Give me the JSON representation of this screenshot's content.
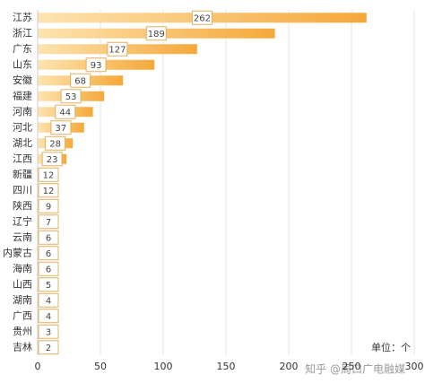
{
  "chart_data": {
    "type": "bar",
    "orientation": "horizontal",
    "categories": [
      "江苏",
      "浙江",
      "广东",
      "山东",
      "安徽",
      "福建",
      "河南",
      "河北",
      "湖北",
      "江西",
      "新疆",
      "四川",
      "陕西",
      "辽宁",
      "云南",
      "内蒙古",
      "海南",
      "山西",
      "湖南",
      "广西",
      "贵州",
      "吉林"
    ],
    "values": [
      262,
      189,
      127,
      93,
      68,
      53,
      44,
      37,
      28,
      23,
      12,
      12,
      9,
      7,
      6,
      6,
      6,
      5,
      4,
      4,
      3,
      2
    ],
    "color": "#f5a83a",
    "xlim": [
      0,
      300
    ],
    "xticks": [
      0,
      50,
      100,
      150,
      200,
      250,
      300
    ],
    "grid": true,
    "unit_label": "单位：个",
    "watermark": "知乎 @周口广电融媒"
  }
}
